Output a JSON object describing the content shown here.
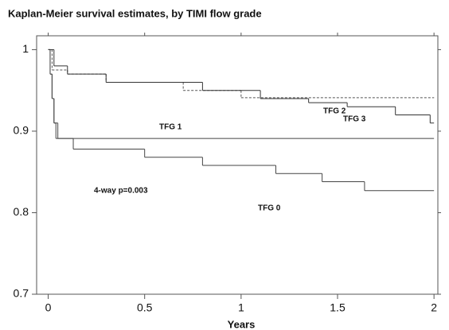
{
  "chart_data": {
    "type": "step",
    "title": "Kaplan-Meier survival estimates, by TIMI flow grade",
    "x_label": "Years",
    "annotation": "4-way p=0.003",
    "xlim": [
      -0.06,
      2.02
    ],
    "ylim": [
      0.7,
      1.017
    ],
    "xticks": [
      0,
      0.5,
      1,
      1.5,
      2
    ],
    "yticks": [
      0.7,
      0.8,
      0.9,
      1
    ],
    "series": [
      {
        "name": "TFG 0",
        "color": "#444444",
        "line_style": "solid",
        "x": [
          0,
          0.01,
          0.02,
          0.03,
          0.05,
          0.13,
          0.5,
          0.8,
          1.18,
          1.42,
          1.64,
          2
        ],
        "values": [
          1,
          0.97,
          0.94,
          0.91,
          0.891,
          0.878,
          0.868,
          0.858,
          0.848,
          0.838,
          0.827,
          0.827
        ]
      },
      {
        "name": "TFG 1",
        "color": "#444444",
        "line_style": "solid",
        "x": [
          0,
          0.01,
          0.02,
          0.03,
          0.04,
          2
        ],
        "values": [
          1,
          0.97,
          0.94,
          0.91,
          0.891,
          0.891
        ]
      },
      {
        "name": "TFG 2",
        "color": "#555555",
        "line_style": "dashed",
        "x": [
          0,
          0.02,
          0.1,
          0.3,
          0.7,
          1.0,
          2
        ],
        "values": [
          1,
          0.975,
          0.97,
          0.96,
          0.95,
          0.941,
          0.941
        ]
      },
      {
        "name": "TFG 3",
        "color": "#333333",
        "line_style": "solid",
        "x": [
          0,
          0.03,
          0.1,
          0.3,
          0.8,
          1.1,
          1.35,
          1.55,
          1.8,
          1.98,
          2
        ],
        "values": [
          1,
          0.98,
          0.97,
          0.96,
          0.95,
          0.94,
          0.935,
          0.93,
          0.92,
          0.91,
          0.91
        ]
      }
    ]
  }
}
